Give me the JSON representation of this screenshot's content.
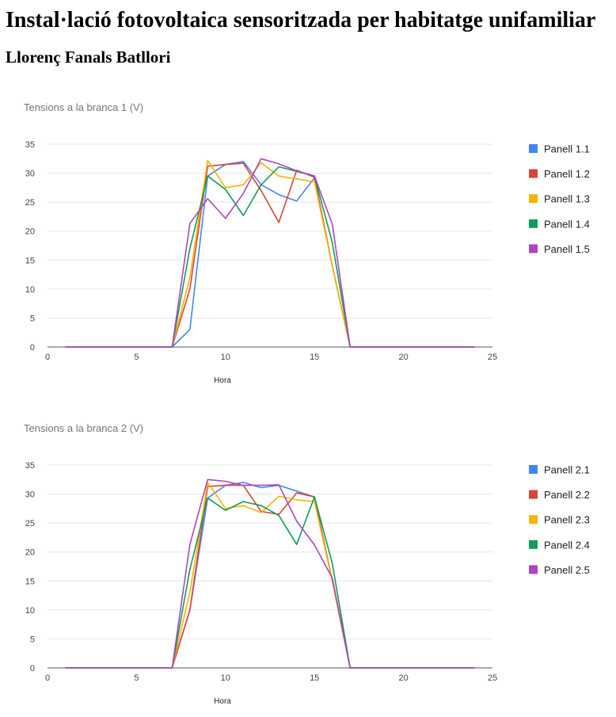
{
  "page": {
    "title": "Instal·lació fotovoltaica sensoritzada per habitatge unifamiliar",
    "author": "Llorenç Fanals Batllori"
  },
  "chart_data": [
    {
      "type": "line",
      "title": "Tensions a la branca 1 (V)",
      "xlabel": "Hora",
      "ylabel": "",
      "xlim": [
        0,
        25
      ],
      "ylim": [
        0,
        35
      ],
      "xticks": [
        0,
        5,
        10,
        15,
        20,
        25
      ],
      "yticks": [
        0,
        5,
        10,
        15,
        20,
        25,
        30,
        35
      ],
      "grid": true,
      "legend": "right",
      "x": [
        1,
        2,
        3,
        4,
        5,
        6,
        7,
        8,
        9,
        10,
        11,
        12,
        13,
        14,
        15,
        16,
        17,
        18,
        19,
        20,
        21,
        22,
        23,
        24
      ],
      "series": [
        {
          "name": "Panell 1.1",
          "color": "#4285f4",
          "values": [
            0,
            0,
            0,
            0,
            0,
            0,
            0,
            3,
            29.5,
            31.5,
            32,
            28,
            26.3,
            25.2,
            29.2,
            14,
            0,
            0,
            0,
            0,
            0,
            0,
            0,
            0
          ]
        },
        {
          "name": "Panell 1.2",
          "color": "#db4437",
          "values": [
            0,
            0,
            0,
            0,
            0,
            0,
            0,
            10,
            31.2,
            31.5,
            31.7,
            27,
            21.5,
            30.5,
            29.3,
            14,
            0,
            0,
            0,
            0,
            0,
            0,
            0,
            0
          ]
        },
        {
          "name": "Panell 1.3",
          "color": "#f4b400",
          "values": [
            0,
            0,
            0,
            0,
            0,
            0,
            0,
            12,
            32.2,
            27.5,
            28,
            31.8,
            29.5,
            29,
            28.5,
            14,
            0,
            0,
            0,
            0,
            0,
            0,
            0,
            0
          ]
        },
        {
          "name": "Panell 1.4",
          "color": "#0f9d58",
          "values": [
            0,
            0,
            0,
            0,
            0,
            0,
            0,
            17,
            29.5,
            27.2,
            22.7,
            28,
            31.1,
            30.3,
            29.5,
            18,
            0,
            0,
            0,
            0,
            0,
            0,
            0,
            0
          ]
        },
        {
          "name": "Panell 1.5",
          "color": "#ab47bc",
          "values": [
            0,
            0,
            0,
            0,
            0,
            0,
            0,
            21.3,
            25.6,
            22.2,
            26.5,
            32.5,
            31.6,
            30.4,
            29.5,
            21.2,
            0,
            0,
            0,
            0,
            0,
            0,
            0,
            0
          ]
        }
      ]
    },
    {
      "type": "line",
      "title": "Tensions a la branca 2 (V)",
      "xlabel": "Hora",
      "ylabel": "",
      "xlim": [
        0,
        25
      ],
      "ylim": [
        0,
        35
      ],
      "xticks": [
        0,
        5,
        10,
        15,
        20,
        25
      ],
      "yticks": [
        0,
        5,
        10,
        15,
        20,
        25,
        30,
        35
      ],
      "grid": true,
      "legend": "right",
      "x": [
        1,
        2,
        3,
        4,
        5,
        6,
        7,
        8,
        9,
        10,
        11,
        12,
        13,
        14,
        15,
        16,
        17,
        18,
        19,
        20,
        21,
        22,
        23,
        24
      ],
      "series": [
        {
          "name": "Panell 2.1",
          "color": "#4285f4",
          "values": [
            0,
            0,
            0,
            0,
            0,
            0,
            0,
            10,
            29.3,
            31.5,
            32,
            31.1,
            31.5,
            30.5,
            29.5,
            15,
            0,
            0,
            0,
            0,
            0,
            0,
            0,
            0
          ]
        },
        {
          "name": "Panell 2.2",
          "color": "#db4437",
          "values": [
            0,
            0,
            0,
            0,
            0,
            0,
            0,
            10,
            31.3,
            31.5,
            31.5,
            27,
            26.5,
            30.2,
            29.5,
            15,
            0,
            0,
            0,
            0,
            0,
            0,
            0,
            0
          ]
        },
        {
          "name": "Panell 2.3",
          "color": "#f4b400",
          "values": [
            0,
            0,
            0,
            0,
            0,
            0,
            0,
            13,
            32,
            27.5,
            28,
            26.8,
            29.6,
            29,
            28.7,
            15,
            0,
            0,
            0,
            0,
            0,
            0,
            0,
            0
          ]
        },
        {
          "name": "Panell 2.4",
          "color": "#0f9d58",
          "values": [
            0,
            0,
            0,
            0,
            0,
            0,
            0,
            17,
            29.3,
            27.2,
            28.7,
            28,
            26.3,
            21.3,
            29.5,
            18,
            0,
            0,
            0,
            0,
            0,
            0,
            0,
            0
          ]
        },
        {
          "name": "Panell 2.5",
          "color": "#ab47bc",
          "values": [
            0,
            0,
            0,
            0,
            0,
            0,
            0,
            21.3,
            32.5,
            32.2,
            31.5,
            31.5,
            31.6,
            25.3,
            21.2,
            15.5,
            0,
            0,
            0,
            0,
            0,
            0,
            0,
            0
          ]
        }
      ]
    }
  ]
}
